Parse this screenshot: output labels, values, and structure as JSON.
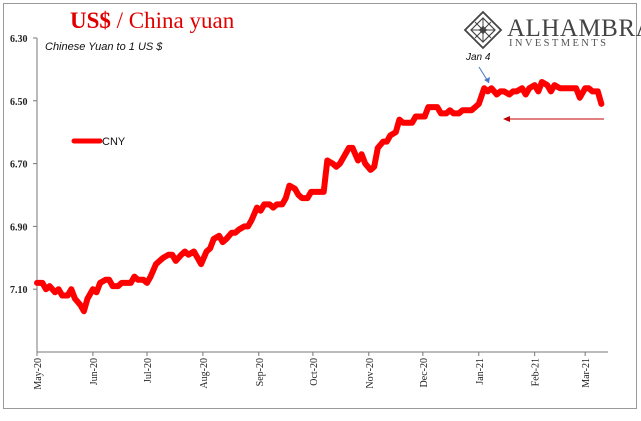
{
  "header": {
    "title_part1": "US$",
    "title_sep": " / ",
    "title_part2": "China yuan",
    "title_color": "#e00000"
  },
  "brand": {
    "name": "ALHAMBRA",
    "tagline": "INVESTMENTS",
    "color": "#444444"
  },
  "chart_data": {
    "type": "line",
    "subtitle": "Chinese Yuan to 1 US $",
    "y_inverted": true,
    "ylim": [
      6.3,
      7.3
    ],
    "yticks": [
      "6.30",
      "6.50",
      "6.70",
      "6.90",
      "7.10"
    ],
    "ytick_values": [
      6.3,
      6.5,
      6.7,
      6.9,
      7.1
    ],
    "xticks": [
      "May-20",
      "Jun-20",
      "Jul-20",
      "Aug-20",
      "Sep-20",
      "Oct-20",
      "Nov-20",
      "Dec-20",
      "Jan-21",
      "Feb-21",
      "Mar-21"
    ],
    "xtick_dates": [
      "2020-05-01",
      "2020-06-01",
      "2020-07-01",
      "2020-08-01",
      "2020-09-01",
      "2020-10-01",
      "2020-11-01",
      "2020-12-01",
      "2021-01-01",
      "2021-02-01",
      "2021-03-01"
    ],
    "x_start": "2020-05-01",
    "x_end": "2021-03-12",
    "grid": false,
    "legend_position": "left",
    "series": [
      {
        "name": "CNY",
        "color": "#ff0000",
        "x": [
          "2020-05-01",
          "2020-05-04",
          "2020-05-06",
          "2020-05-08",
          "2020-05-11",
          "2020-05-13",
          "2020-05-15",
          "2020-05-18",
          "2020-05-20",
          "2020-05-22",
          "2020-05-25",
          "2020-05-26",
          "2020-05-27",
          "2020-05-29",
          "2020-06-01",
          "2020-06-03",
          "2020-06-05",
          "2020-06-08",
          "2020-06-10",
          "2020-06-12",
          "2020-06-15",
          "2020-06-17",
          "2020-06-19",
          "2020-06-22",
          "2020-06-24",
          "2020-06-26",
          "2020-06-29",
          "2020-07-01",
          "2020-07-03",
          "2020-07-06",
          "2020-07-08",
          "2020-07-10",
          "2020-07-13",
          "2020-07-15",
          "2020-07-17",
          "2020-07-20",
          "2020-07-22",
          "2020-07-24",
          "2020-07-27",
          "2020-07-29",
          "2020-07-31",
          "2020-08-03",
          "2020-08-05",
          "2020-08-07",
          "2020-08-10",
          "2020-08-12",
          "2020-08-14",
          "2020-08-17",
          "2020-08-19",
          "2020-08-21",
          "2020-08-24",
          "2020-08-26",
          "2020-08-28",
          "2020-08-31",
          "2020-09-02",
          "2020-09-04",
          "2020-09-07",
          "2020-09-09",
          "2020-09-11",
          "2020-09-14",
          "2020-09-16",
          "2020-09-18",
          "2020-09-21",
          "2020-09-23",
          "2020-09-25",
          "2020-09-28",
          "2020-09-30",
          "2020-10-02",
          "2020-10-05",
          "2020-10-07",
          "2020-10-09",
          "2020-10-12",
          "2020-10-14",
          "2020-10-16",
          "2020-10-19",
          "2020-10-21",
          "2020-10-23",
          "2020-10-26",
          "2020-10-28",
          "2020-10-30",
          "2020-11-02",
          "2020-11-04",
          "2020-11-06",
          "2020-11-09",
          "2020-11-11",
          "2020-11-13",
          "2020-11-16",
          "2020-11-18",
          "2020-11-20",
          "2020-11-23",
          "2020-11-25",
          "2020-11-27",
          "2020-11-30",
          "2020-12-02",
          "2020-12-04",
          "2020-12-07",
          "2020-12-09",
          "2020-12-11",
          "2020-12-14",
          "2020-12-16",
          "2020-12-18",
          "2020-12-21",
          "2020-12-23",
          "2020-12-25",
          "2020-12-28",
          "2020-12-30",
          "2021-01-01",
          "2021-01-04",
          "2021-01-06",
          "2021-01-08",
          "2021-01-11",
          "2021-01-13",
          "2021-01-15",
          "2021-01-18",
          "2021-01-20",
          "2021-01-22",
          "2021-01-25",
          "2021-01-27",
          "2021-01-29",
          "2021-02-01",
          "2021-02-03",
          "2021-02-05",
          "2021-02-08",
          "2021-02-10",
          "2021-02-12",
          "2021-02-15",
          "2021-02-17",
          "2021-02-19",
          "2021-02-22",
          "2021-02-24",
          "2021-02-26",
          "2021-03-01",
          "2021-03-03",
          "2021-03-05",
          "2021-03-08",
          "2021-03-10"
        ],
        "values": [
          7.08,
          7.08,
          7.1,
          7.09,
          7.11,
          7.1,
          7.12,
          7.12,
          7.1,
          7.13,
          7.15,
          7.16,
          7.17,
          7.13,
          7.1,
          7.11,
          7.08,
          7.07,
          7.07,
          7.09,
          7.09,
          7.08,
          7.08,
          7.08,
          7.06,
          7.07,
          7.07,
          7.08,
          7.06,
          7.02,
          7.01,
          7.0,
          6.99,
          6.99,
          7.01,
          6.99,
          6.98,
          6.99,
          6.98,
          7.0,
          7.02,
          6.98,
          6.97,
          6.94,
          6.93,
          6.95,
          6.94,
          6.92,
          6.92,
          6.91,
          6.9,
          6.9,
          6.88,
          6.84,
          6.85,
          6.83,
          6.83,
          6.84,
          6.83,
          6.83,
          6.81,
          6.77,
          6.78,
          6.8,
          6.81,
          6.81,
          6.79,
          6.79,
          6.79,
          6.79,
          6.69,
          6.7,
          6.71,
          6.7,
          6.67,
          6.65,
          6.65,
          6.69,
          6.67,
          6.7,
          6.72,
          6.71,
          6.65,
          6.63,
          6.63,
          6.61,
          6.6,
          6.56,
          6.57,
          6.57,
          6.57,
          6.55,
          6.55,
          6.55,
          6.52,
          6.52,
          6.52,
          6.54,
          6.54,
          6.53,
          6.54,
          6.54,
          6.53,
          6.53,
          6.53,
          6.52,
          6.51,
          6.46,
          6.47,
          6.46,
          6.48,
          6.47,
          6.47,
          6.48,
          6.47,
          6.47,
          6.46,
          6.48,
          6.46,
          6.45,
          6.47,
          6.44,
          6.45,
          6.47,
          6.45,
          6.46,
          6.46,
          6.46,
          6.46,
          6.46,
          6.49,
          6.46,
          6.46,
          6.47,
          6.47,
          6.51
        ]
      }
    ],
    "annotations": [
      {
        "text": "Jan 4",
        "x": "2021-01-04",
        "y": 6.46
      }
    ]
  }
}
